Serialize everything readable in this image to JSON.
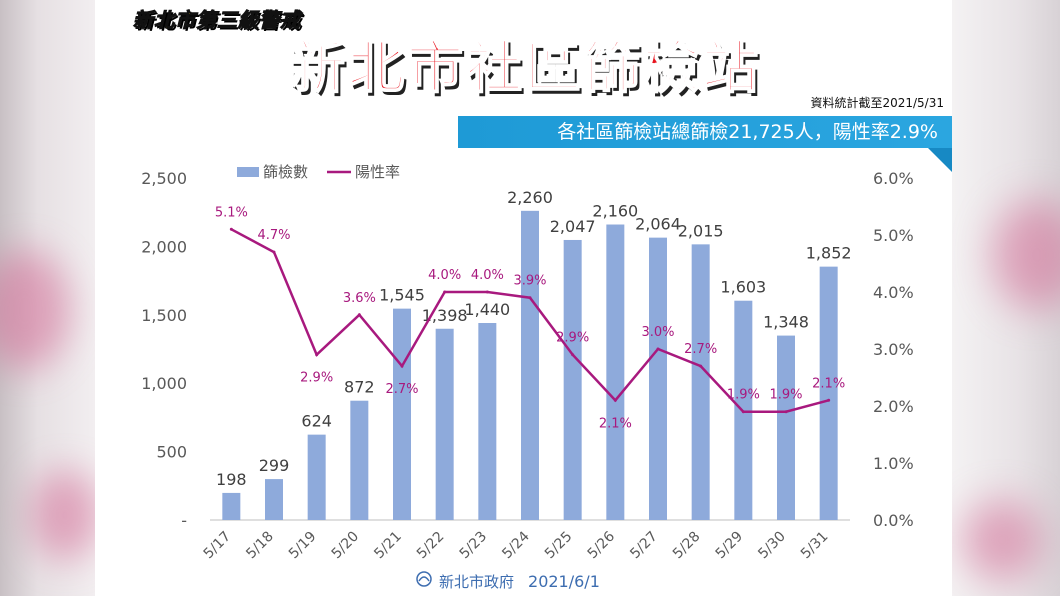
{
  "header": {
    "alert_label": "新北市第三級警戒",
    "title": "新北市社區篩檢站",
    "as_of": "資料統計截至2021/5/31",
    "banner": "各社區篩檢站總篩檢21,725人，陽性率2.9%"
  },
  "footer": {
    "org": "新北市政府",
    "date": "2021/6/1"
  },
  "colors": {
    "bar": "#8eaadb",
    "line": "#a8197e",
    "banner": "#1e9ad6",
    "title": "#e8141e"
  },
  "chart_data": {
    "type": "bar",
    "categories": [
      "5/17",
      "5/18",
      "5/19",
      "5/20",
      "5/21",
      "5/22",
      "5/23",
      "5/24",
      "5/25",
      "5/26",
      "5/27",
      "5/28",
      "5/29",
      "5/30",
      "5/31"
    ],
    "series": [
      {
        "name": "篩檢數",
        "type": "bar",
        "axis": "left",
        "values": [
          198,
          299,
          624,
          872,
          1545,
          1398,
          1440,
          2260,
          2047,
          2160,
          2064,
          2015,
          1603,
          1348,
          1852
        ]
      },
      {
        "name": "陽性率",
        "type": "line",
        "axis": "right",
        "values": [
          5.1,
          4.7,
          2.9,
          3.6,
          2.7,
          4.0,
          4.0,
          3.9,
          2.9,
          2.1,
          3.0,
          2.7,
          1.9,
          1.9,
          2.1
        ]
      }
    ],
    "bar_labels": [
      "198",
      "299",
      "624",
      "872",
      "1,545",
      "1,398",
      "1,440",
      "2,260",
      "2,047",
      "2,160",
      "2,064",
      "2,015",
      "1,603",
      "1,348",
      "1,852"
    ],
    "line_labels": [
      "5.1%",
      "4.7%",
      "2.9%",
      "3.6%",
      "2.7%",
      "4.0%",
      "4.0%",
      "3.9%",
      "2.9%",
      "2.1%",
      "3.0%",
      "2.7%",
      "1.9%",
      "1.9%",
      "2.1%"
    ],
    "y_left": {
      "range": [
        0,
        2500
      ],
      "ticks": [
        "-",
        "500",
        "1,000",
        "1,500",
        "2,000",
        "2,500"
      ]
    },
    "y_right": {
      "range": [
        0,
        6
      ],
      "ticks": [
        "0.0%",
        "1.0%",
        "2.0%",
        "3.0%",
        "4.0%",
        "5.0%",
        "6.0%"
      ]
    },
    "legend": [
      "篩檢數",
      "陽性率"
    ],
    "legend_position": "top-left",
    "grid": false
  }
}
